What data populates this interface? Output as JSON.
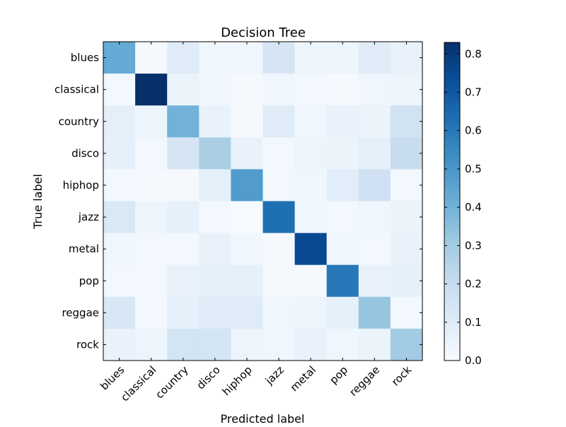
{
  "chart_data": {
    "type": "heatmap",
    "title": "Decision Tree",
    "xlabel": "Predicted label",
    "ylabel": "True label",
    "x_categories": [
      "blues",
      "classical",
      "country",
      "disco",
      "hiphop",
      "jazz",
      "metal",
      "pop",
      "reggae",
      "rock"
    ],
    "y_categories": [
      "blues",
      "classical",
      "country",
      "disco",
      "hiphop",
      "jazz",
      "metal",
      "pop",
      "reggae",
      "rock"
    ],
    "colormap": "Blues",
    "colorbar": {
      "min": 0.0,
      "max": 0.83,
      "ticks": [
        0.0,
        0.1,
        0.2,
        0.3,
        0.4,
        0.5,
        0.6,
        0.7,
        0.8
      ],
      "tick_labels": [
        "0.0",
        "0.1",
        "0.2",
        "0.3",
        "0.4",
        "0.5",
        "0.6",
        "0.7",
        "0.8"
      ]
    },
    "values": [
      [
        0.43,
        0.01,
        0.1,
        0.03,
        0.03,
        0.14,
        0.04,
        0.04,
        0.1,
        0.06
      ],
      [
        0.02,
        0.83,
        0.05,
        0.03,
        0.01,
        0.03,
        0.02,
        0.01,
        0.03,
        0.04
      ],
      [
        0.08,
        0.04,
        0.4,
        0.06,
        0.01,
        0.1,
        0.03,
        0.06,
        0.05,
        0.16
      ],
      [
        0.07,
        0.02,
        0.14,
        0.28,
        0.06,
        0.02,
        0.04,
        0.05,
        0.08,
        0.2
      ],
      [
        0.02,
        0.01,
        0.01,
        0.08,
        0.48,
        0.02,
        0.03,
        0.09,
        0.17,
        0.02
      ],
      [
        0.12,
        0.04,
        0.07,
        0.02,
        0.0,
        0.63,
        0.03,
        0.02,
        0.03,
        0.05
      ],
      [
        0.03,
        0.02,
        0.02,
        0.06,
        0.03,
        0.01,
        0.75,
        0.03,
        0.02,
        0.06
      ],
      [
        0.02,
        0.02,
        0.06,
        0.07,
        0.07,
        0.01,
        0.01,
        0.6,
        0.06,
        0.07
      ],
      [
        0.13,
        0.02,
        0.07,
        0.1,
        0.1,
        0.03,
        0.04,
        0.07,
        0.33,
        0.02
      ],
      [
        0.06,
        0.04,
        0.15,
        0.15,
        0.04,
        0.03,
        0.06,
        0.03,
        0.05,
        0.3
      ]
    ]
  }
}
